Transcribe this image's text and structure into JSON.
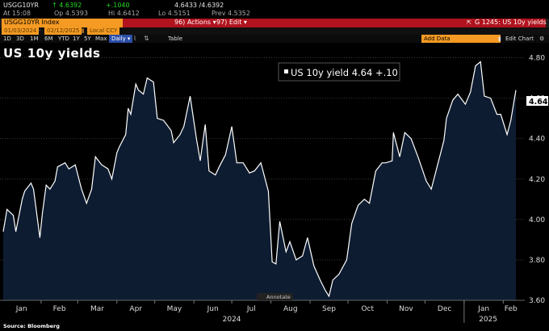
{
  "header": {
    "ticker": "USGG10YR",
    "last": "↑ 4.6392",
    "change": "+.1040",
    "bid_ask": "4.6433 /4.6392",
    "at": "At 15:08",
    "open": "Op 4.5393",
    "high": "Hi 4.6412",
    "low": "Lo 4.5151",
    "prev": "Prev 4.5352"
  },
  "toolbar": {
    "security": "USGG10YR Index",
    "actions": "96) Actions ▾",
    "edit": "97) Edit ▾",
    "page": "G 1245: US 10y yields",
    "date_from": "01/03/2024",
    "date_to": "02/12/2025",
    "currency": "Local CCY",
    "ranges": [
      "1D",
      "3D",
      "1M",
      "6M",
      "YTD",
      "1Y",
      "5Y",
      "Max"
    ],
    "frequency": "Daily ▾",
    "table": "Table",
    "add_data": "Add Data",
    "edit_chart": "Edit Chart"
  },
  "chart_title": "US 10y yields",
  "annotate_label": "Annotate",
  "source": "Source: Bloomberg",
  "colors": {
    "background": "#000000",
    "fill": "#0d1c31",
    "line": "#ffffff",
    "accent_orange": "#f59a23",
    "accent_red": "#b0131e"
  },
  "chart_data": {
    "type": "area",
    "title": "US 10y yields",
    "legend": "US 10y yield 4.64 +.10",
    "last_label": "4.64",
    "ylim": [
      3.6,
      4.85
    ],
    "yticks": [
      "3.60",
      "3.80",
      "4.00",
      "4.20",
      "4.40",
      "4.60",
      "4.80"
    ],
    "months": [
      "Jan",
      "Feb",
      "Mar",
      "Apr",
      "May",
      "Jun",
      "Jul",
      "Aug",
      "Sep",
      "Oct",
      "Nov",
      "Dec",
      "Jan",
      "Feb"
    ],
    "years": [
      "2024",
      "2025"
    ],
    "grid": true,
    "x": [
      "2024-01-02",
      "2024-01-05",
      "2024-01-10",
      "2024-01-12",
      "2024-01-17",
      "2024-01-19",
      "2024-01-24",
      "2024-01-26",
      "2024-01-31",
      "2024-02-02",
      "2024-02-05",
      "2024-02-08",
      "2024-02-12",
      "2024-02-14",
      "2024-02-20",
      "2024-02-23",
      "2024-02-28",
      "2024-03-04",
      "2024-03-08",
      "2024-03-12",
      "2024-03-15",
      "2024-03-20",
      "2024-03-25",
      "2024-03-28",
      "2024-04-01",
      "2024-04-03",
      "2024-04-08",
      "2024-04-10",
      "2024-04-12",
      "2024-04-16",
      "2024-04-18",
      "2024-04-22",
      "2024-04-25",
      "2024-04-30",
      "2024-05-03",
      "2024-05-08",
      "2024-05-14",
      "2024-05-16",
      "2024-05-21",
      "2024-05-24",
      "2024-05-29",
      "2024-06-03",
      "2024-06-06",
      "2024-06-10",
      "2024-06-13",
      "2024-06-18",
      "2024-06-21",
      "2024-06-26",
      "2024-07-01",
      "2024-07-05",
      "2024-07-10",
      "2024-07-15",
      "2024-07-19",
      "2024-07-24",
      "2024-07-30",
      "2024-08-02",
      "2024-08-05",
      "2024-08-08",
      "2024-08-13",
      "2024-08-16",
      "2024-08-21",
      "2024-08-26",
      "2024-08-30",
      "2024-09-04",
      "2024-09-09",
      "2024-09-13",
      "2024-09-16",
      "2024-09-19",
      "2024-09-24",
      "2024-09-30",
      "2024-10-04",
      "2024-10-09",
      "2024-10-14",
      "2024-10-18",
      "2024-10-23",
      "2024-10-28",
      "2024-10-31",
      "2024-11-05",
      "2024-11-06",
      "2024-11-11",
      "2024-11-15",
      "2024-11-20",
      "2024-11-26",
      "2024-12-02",
      "2024-12-06",
      "2024-12-11",
      "2024-12-16",
      "2024-12-18",
      "2024-12-23",
      "2024-12-27",
      "2025-01-02",
      "2025-01-06",
      "2025-01-10",
      "2025-01-14",
      "2025-01-17",
      "2025-01-22",
      "2025-01-27",
      "2025-01-30",
      "2025-02-04",
      "2025-02-07",
      "2025-02-11"
    ],
    "series": [
      {
        "values": [
          3.94,
          4.05,
          4.02,
          3.94,
          4.1,
          4.14,
          4.18,
          4.15,
          3.91,
          4.03,
          4.17,
          4.15,
          4.19,
          4.26,
          4.28,
          4.25,
          4.27,
          4.15,
          4.08,
          4.15,
          4.31,
          4.27,
          4.25,
          4.2,
          4.33,
          4.36,
          4.42,
          4.55,
          4.52,
          4.67,
          4.64,
          4.62,
          4.7,
          4.68,
          4.5,
          4.49,
          4.44,
          4.38,
          4.42,
          4.46,
          4.61,
          4.4,
          4.29,
          4.47,
          4.24,
          4.22,
          4.26,
          4.32,
          4.46,
          4.28,
          4.28,
          4.23,
          4.24,
          4.28,
          4.14,
          3.79,
          3.78,
          3.99,
          3.84,
          3.89,
          3.8,
          3.82,
          3.91,
          3.77,
          3.7,
          3.65,
          3.62,
          3.7,
          3.73,
          3.8,
          3.98,
          4.07,
          4.1,
          4.08,
          4.24,
          4.28,
          4.28,
          4.29,
          4.43,
          4.31,
          4.43,
          4.4,
          4.3,
          4.19,
          4.15,
          4.27,
          4.39,
          4.5,
          4.59,
          4.62,
          4.57,
          4.63,
          4.76,
          4.78,
          4.61,
          4.6,
          4.52,
          4.52,
          4.42,
          4.49,
          4.64
        ]
      }
    ]
  }
}
